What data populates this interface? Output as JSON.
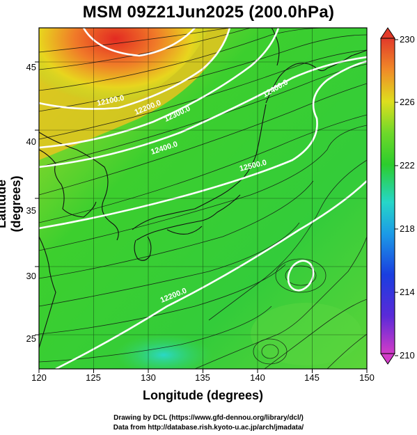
{
  "title": "MSM 09Z21Jun2025 (200.0hPa)",
  "x_axis": {
    "label": "Longitude (degrees)",
    "ticks": [
      "120",
      "125",
      "130",
      "135",
      "140",
      "145",
      "150"
    ]
  },
  "y_axis": {
    "label": "Latitude  (degrees)",
    "ticks": [
      "45",
      "40",
      "35",
      "30",
      "25"
    ]
  },
  "colorbar": {
    "ticks": [
      "230",
      "226",
      "222",
      "218",
      "214",
      "210"
    ],
    "min": 210,
    "max": 230
  },
  "contour_labels": [
    "12100.0",
    "12200.0",
    "12300.0",
    "12400.0",
    "12500.0",
    "12200.0",
    "12400.0"
  ],
  "credits": {
    "line1": "Drawing by DCL (https://www.gfd-dennou.org/library/dcl/)",
    "line2": "Data from http://database.rish.kyoto-u.ac.jp/arch/jmadata/"
  },
  "colors": {
    "warm": "#e8442a",
    "mid": "#e2e21a",
    "green": "#2ccd2c",
    "cool": "#29d6c4",
    "contour": "#ffffff"
  },
  "map_data": {
    "region": "Japan and surroundings",
    "lon_range": [
      120,
      150
    ],
    "lat_range": [
      22.5,
      47.5
    ],
    "field": "temperature (shaded), wind streamlines, geopotential height contours"
  }
}
